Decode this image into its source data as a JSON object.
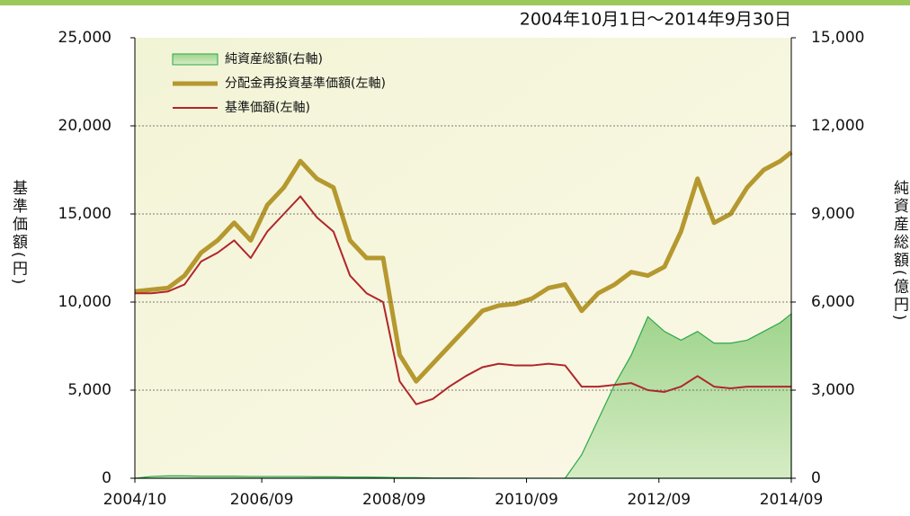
{
  "chart_data": {
    "type": "line",
    "subtitle": "2004年10月1日～2014年9月30日",
    "y_label": "基準価額(円)",
    "y2_label": "純資産総額(億円)",
    "x": [
      "2004/10",
      "2005/01",
      "2005/04",
      "2005/07",
      "2005/10",
      "2006/01",
      "2006/04",
      "2006/07",
      "2006/10",
      "2007/01",
      "2007/04",
      "2007/07",
      "2007/10",
      "2008/01",
      "2008/04",
      "2008/07",
      "2008/10",
      "2009/01",
      "2009/04",
      "2009/07",
      "2009/10",
      "2010/01",
      "2010/04",
      "2010/07",
      "2010/10",
      "2011/01",
      "2011/04",
      "2011/07",
      "2011/10",
      "2012/01",
      "2012/04",
      "2012/07",
      "2012/10",
      "2013/01",
      "2013/04",
      "2013/07",
      "2013/10",
      "2014/01",
      "2014/04",
      "2014/07",
      "2014/09"
    ],
    "xlim": [
      "2004/10",
      "2014/09"
    ],
    "xticks": [
      "2004/10",
      "2006/09",
      "2008/09",
      "2010/09",
      "2012/09",
      "2014/09"
    ],
    "ylim": [
      0,
      25000
    ],
    "yticks": [
      0,
      {
        "value": 5000,
        "label": "5,000"
      },
      {
        "value": 10000,
        "label": "10,000"
      },
      {
        "value": 15000,
        "label": "15,000"
      },
      {
        "value": 20000,
        "label": "20,000"
      },
      {
        "value": 25000,
        "label": "25,000"
      }
    ],
    "y2lim": [
      0,
      15000
    ],
    "y2ticks": [
      0,
      {
        "value": 3000,
        "label": "3,000"
      },
      {
        "value": 6000,
        "label": "6,000"
      },
      {
        "value": 9000,
        "label": "9,000"
      },
      {
        "value": 12000,
        "label": "12,000"
      },
      {
        "value": 15000,
        "label": "15,000"
      }
    ],
    "grid": true,
    "legend": "upper left",
    "series": [
      {
        "name": "純資産総額(右軸)",
        "type": "area",
        "axis": "y2",
        "color": "#2aa84a",
        "values": [
          0,
          60,
          80,
          80,
          70,
          70,
          70,
          60,
          60,
          60,
          60,
          50,
          50,
          40,
          40,
          30,
          20,
          20,
          10,
          10,
          10,
          0,
          0,
          0,
          0,
          0,
          0,
          800,
          2000,
          3200,
          4200,
          5500,
          5000,
          4700,
          5000,
          4600,
          4600,
          4700,
          5000,
          5300,
          5600
        ]
      },
      {
        "name": "分配金再投資基準価額(左軸)",
        "color": "#b5982f",
        "values": [
          10600,
          10700,
          10800,
          11500,
          12800,
          13500,
          14500,
          13500,
          15500,
          16500,
          18000,
          17000,
          16500,
          13500,
          12500,
          12500,
          7000,
          5500,
          6500,
          7500,
          8500,
          9500,
          9800,
          9900,
          10200,
          10800,
          11000,
          9500,
          10500,
          11000,
          11700,
          11500,
          12000,
          14000,
          17000,
          14500,
          15000,
          16500,
          17500,
          18000,
          18500
        ]
      },
      {
        "name": "基準価額(左軸)",
        "color": "#b0262b",
        "values": [
          10500,
          10500,
          10600,
          11000,
          12300,
          12800,
          13500,
          12500,
          14000,
          15000,
          16000,
          14800,
          14000,
          11500,
          10500,
          10000,
          5500,
          4200,
          4500,
          5200,
          5800,
          6300,
          6500,
          6400,
          6400,
          6500,
          6400,
          5200,
          5200,
          5300,
          5400,
          5000,
          4900,
          5200,
          5800,
          5200,
          5100,
          5200,
          5200,
          5200,
          5200
        ]
      }
    ]
  }
}
